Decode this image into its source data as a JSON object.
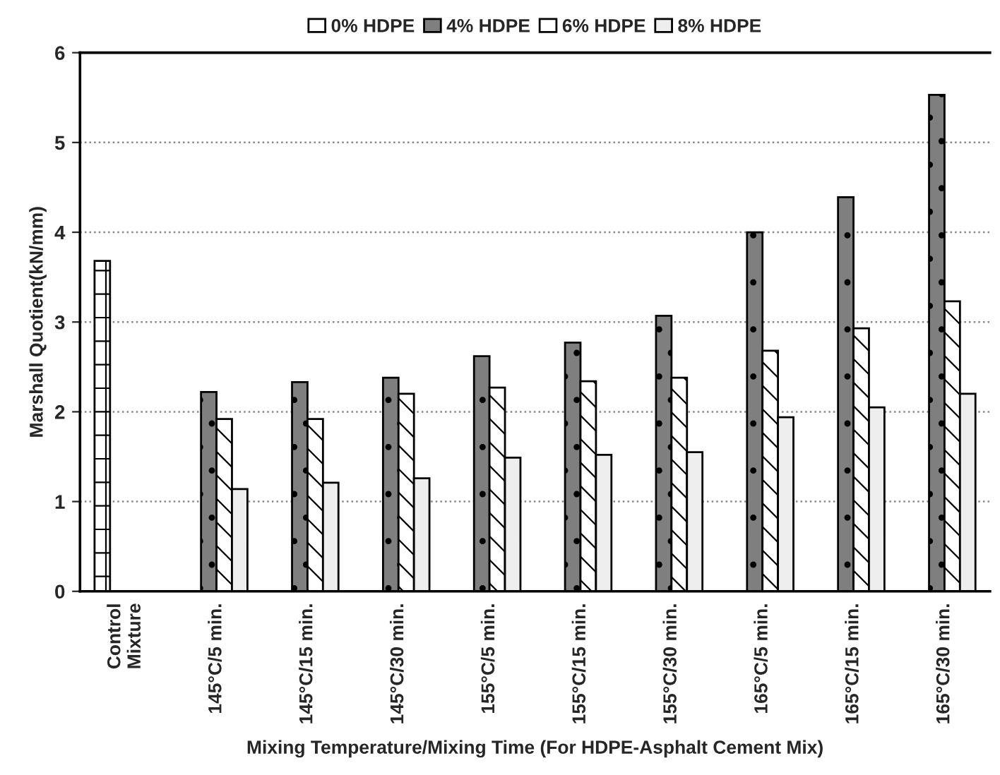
{
  "chart_data": {
    "type": "bar",
    "ylabel": "Marshall Quotient(kN/mm)",
    "xlabel": "Mixing Temperature/Mixing Time (For HDPE-Asphalt Cement Mix)",
    "categories": [
      "Control\nMixture",
      "145°C/5 min.",
      "145°C/15 min.",
      "145°C/30 min.",
      "155°C/5 min.",
      "155°C/15 min.",
      "155°C/30 min.",
      "165°C/5 min.",
      "165°C/15 min.",
      "165°C/30 min."
    ],
    "series": [
      {
        "name": "0% HDPE",
        "color": "#ffffff",
        "values": [
          3.68,
          null,
          null,
          null,
          null,
          null,
          null,
          null,
          null,
          null
        ]
      },
      {
        "name": "4% HDPE",
        "color": "#7f7f7f",
        "values": [
          null,
          2.22,
          2.33,
          2.38,
          2.62,
          2.77,
          3.07,
          4.0,
          4.39,
          5.53
        ]
      },
      {
        "name": "6% HDPE",
        "color": "#ffffff",
        "values": [
          null,
          1.92,
          1.92,
          2.2,
          2.27,
          2.34,
          2.38,
          2.68,
          2.93,
          3.23
        ]
      },
      {
        "name": "8% HDPE",
        "color": "#eeeeee",
        "values": [
          null,
          1.14,
          1.21,
          1.26,
          1.49,
          1.52,
          1.55,
          1.94,
          2.05,
          2.2
        ]
      }
    ],
    "ylim": [
      0,
      6
    ],
    "yticks": [
      0,
      1,
      2,
      3,
      4,
      5,
      6
    ],
    "grid": "y",
    "legend": "top"
  }
}
